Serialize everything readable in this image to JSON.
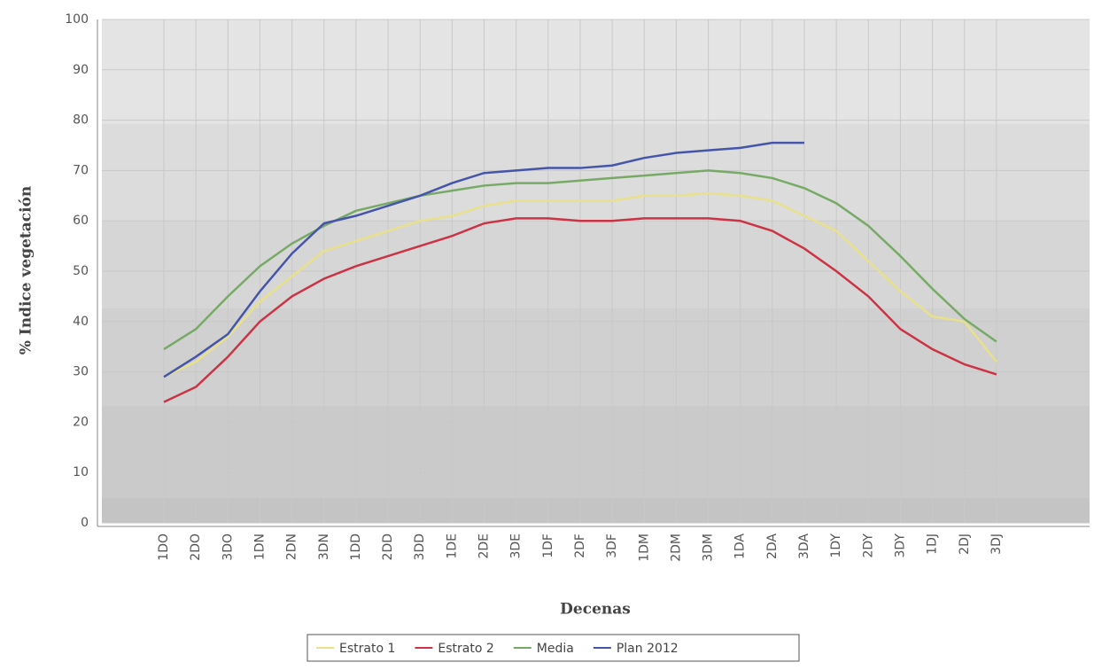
{
  "chart_data": {
    "type": "line",
    "x_label": "Decenas",
    "y_label": "% Indice vegetación",
    "categories": [
      "1DO",
      "2DO",
      "3DO",
      "1DN",
      "2DN",
      "3DN",
      "1DD",
      "2DD",
      "3DD",
      "1DE",
      "2DE",
      "3DE",
      "1DF",
      "2DF",
      "3DF",
      "1DM",
      "2DM",
      "3DM",
      "1DA",
      "2DA",
      "3DA",
      "1DY",
      "2DY",
      "3DY",
      "1DJ",
      "2DJ",
      "3DJ"
    ],
    "series": [
      {
        "name": "Estrato 1",
        "color": "#e8e08a",
        "values": [
          29,
          32,
          37,
          44,
          49,
          54,
          56,
          58,
          60,
          61,
          63,
          64,
          64,
          64,
          64,
          65,
          65,
          65.5,
          65,
          64,
          61,
          58,
          52,
          46,
          41,
          40,
          32
        ]
      },
      {
        "name": "Estrato 2",
        "color": "#cc3344",
        "values": [
          24,
          27,
          33,
          40,
          45,
          48.5,
          51,
          53,
          55,
          57,
          59.5,
          60.5,
          60.5,
          60,
          60,
          60.5,
          60.5,
          60.5,
          60,
          58,
          54.5,
          50,
          45,
          38.5,
          34.5,
          31.5,
          29.5
        ]
      },
      {
        "name": "Media",
        "color": "#77aa66",
        "values": [
          34.5,
          38.5,
          45,
          51,
          55.5,
          59,
          62,
          63.5,
          65,
          66,
          67,
          67.5,
          67.5,
          68,
          68.5,
          69,
          69.5,
          70,
          69.5,
          68.5,
          66.5,
          63.5,
          59,
          53,
          46.5,
          40.5,
          36
        ]
      },
      {
        "name": "Plan 2012",
        "color": "#4455aa",
        "values": [
          29,
          33,
          37.5,
          46,
          53.5,
          59.5,
          61,
          63,
          65,
          67.5,
          69.5,
          70,
          70.5,
          70.5,
          71,
          72.5,
          73.5,
          74,
          74.5,
          75.5,
          75.5,
          null,
          null,
          null,
          null,
          null,
          null
        ]
      }
    ],
    "ylim": [
      0,
      100
    ],
    "yticks": [
      0,
      10,
      20,
      30,
      40,
      50,
      60,
      70,
      80,
      90,
      100
    ],
    "grid": true
  }
}
